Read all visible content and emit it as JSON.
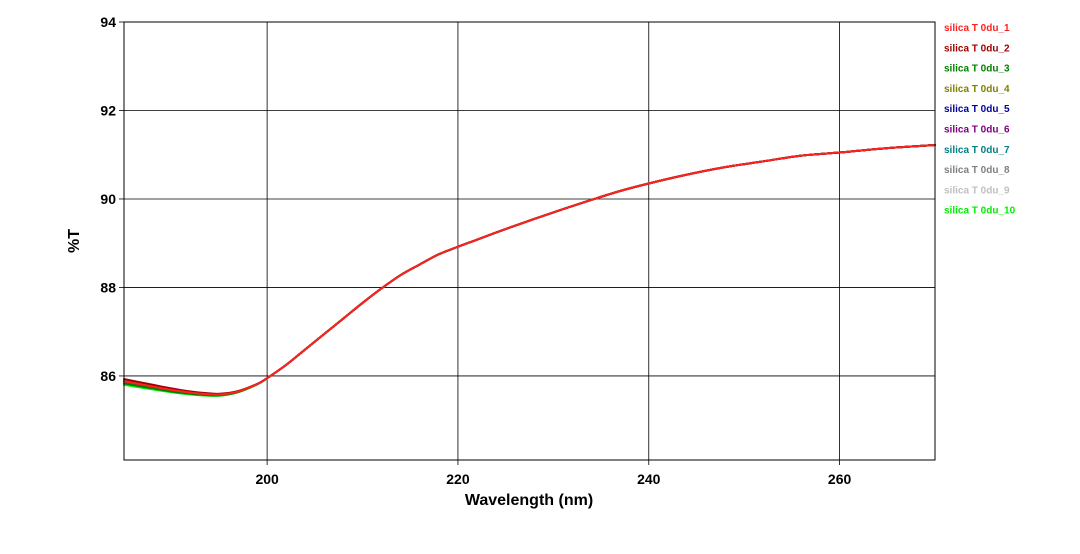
{
  "chart_data": {
    "type": "line",
    "title": "",
    "xlabel": "Wavelength (nm)",
    "ylabel": "%T",
    "xlim": [
      185,
      270
    ],
    "ylim": [
      84.1,
      94
    ],
    "x_ticks": [
      200,
      220,
      240,
      260
    ],
    "y_ticks": [
      86,
      88,
      90,
      92,
      94
    ],
    "grid": true,
    "legend_position": "right",
    "series": [
      {
        "name": "silica T 0du_1",
        "color": "#ff2020",
        "offset": 0.0
      },
      {
        "name": "silica T 0du_2",
        "color": "#a00000",
        "offset": 0.05
      },
      {
        "name": "silica T 0du_3",
        "color": "#008000",
        "offset": -0.05
      },
      {
        "name": "silica T 0du_4",
        "color": "#808000",
        "offset": 0.02
      },
      {
        "name": "silica T 0du_5",
        "color": "#0000a0",
        "offset": 0.0
      },
      {
        "name": "silica T 0du_6",
        "color": "#800080",
        "offset": 0.01
      },
      {
        "name": "silica T 0du_7",
        "color": "#008080",
        "offset": -0.01
      },
      {
        "name": "silica T 0du_8",
        "color": "#808080",
        "offset": 0.0
      },
      {
        "name": "silica T 0du_9",
        "color": "#c0c0c0",
        "offset": 0.0
      },
      {
        "name": "silica T 0du_10",
        "color": "#00ee00",
        "offset": -0.08
      }
    ],
    "x": [
      185,
      187,
      189,
      191,
      193,
      195,
      197,
      199,
      200,
      202,
      204,
      206,
      208,
      210,
      212,
      214,
      216,
      218,
      220,
      222,
      225,
      228,
      231,
      234,
      237,
      240,
      244,
      248,
      252,
      256,
      260,
      265,
      270
    ],
    "y": [
      85.88,
      85.8,
      85.72,
      85.65,
      85.6,
      85.58,
      85.65,
      85.82,
      85.95,
      86.25,
      86.6,
      86.95,
      87.3,
      87.65,
      87.98,
      88.28,
      88.52,
      88.75,
      88.92,
      89.08,
      89.32,
      89.55,
      89.77,
      89.98,
      90.18,
      90.35,
      90.55,
      90.72,
      90.85,
      90.98,
      91.05,
      91.15,
      91.22
    ]
  }
}
